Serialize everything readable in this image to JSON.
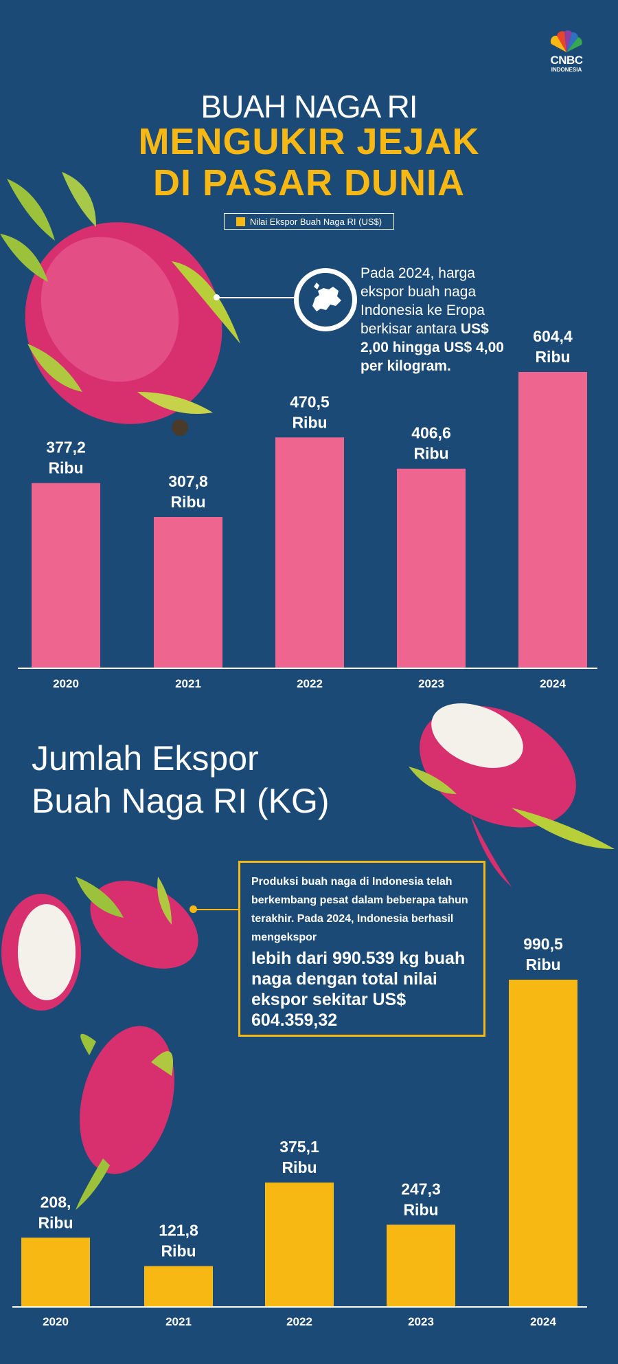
{
  "brand": {
    "logo": "CNBC",
    "logo_sub": "INDONESIA"
  },
  "header": {
    "title_line1": "BUAH NAGA RI",
    "title_line2": "MENGUKIR JEJAK",
    "title_line3": "DI PASAR DUNIA",
    "legend": "Nilai Ekspor Buah Naga RI (US$)"
  },
  "note1": {
    "text_plain": "Pada 2024, harga ekspor buah naga Indonesia ke Eropa berkisar antara",
    "text_bold": "US$ 2,00 hingga US$ 4,00 per kilogram."
  },
  "section2": {
    "title_line1": "Jumlah Ekspor",
    "title_line2": "Buah Naga RI (KG)"
  },
  "note2": {
    "text_small": "Produksi buah naga di Indonesia telah berkembang pesat dalam beberapa tahun terakhir. Pada 2024, Indonesia berhasil mengekspor",
    "text_big": "lebih dari 990.539 kg buah naga dengan total nilai ekspor sekitar US$ 604.359,32"
  },
  "colors": {
    "background": "#1b4a76",
    "pink_bar": "#ee6690",
    "yellow_bar": "#f8b814"
  },
  "icons": [
    "cnbc-peacock-icon",
    "europe-map-icon",
    "dragon-fruit-image"
  ],
  "chart_data": [
    {
      "type": "bar",
      "title": "Nilai Ekspor Buah Naga RI (US$)",
      "categories": [
        "2020",
        "2021",
        "2022",
        "2023",
        "2024"
      ],
      "values": [
        377.2,
        307.8,
        470.5,
        406.6,
        604.4
      ],
      "labels": [
        "377,2\nRibu",
        "307,8\nRibu",
        "470,5\nRibu",
        "406,6\nRibu",
        "604,4\nRibu"
      ],
      "ylim": [
        0,
        604.4
      ],
      "color": "#ee6690",
      "grid": false
    },
    {
      "type": "bar",
      "title": "Jumlah Ekspor Buah Naga RI (KG)",
      "categories": [
        "2020",
        "2021",
        "2022",
        "2023",
        "2024"
      ],
      "values": [
        208,
        121.8,
        375.1,
        247.3,
        990.5
      ],
      "labels": [
        "208,\nRibu",
        "121,8\nRibu",
        "375,1\nRibu",
        "247,3\nRibu",
        "990,5\nRibu"
      ],
      "ylim": [
        0,
        990.5
      ],
      "color": "#f8b814",
      "grid": false
    }
  ]
}
